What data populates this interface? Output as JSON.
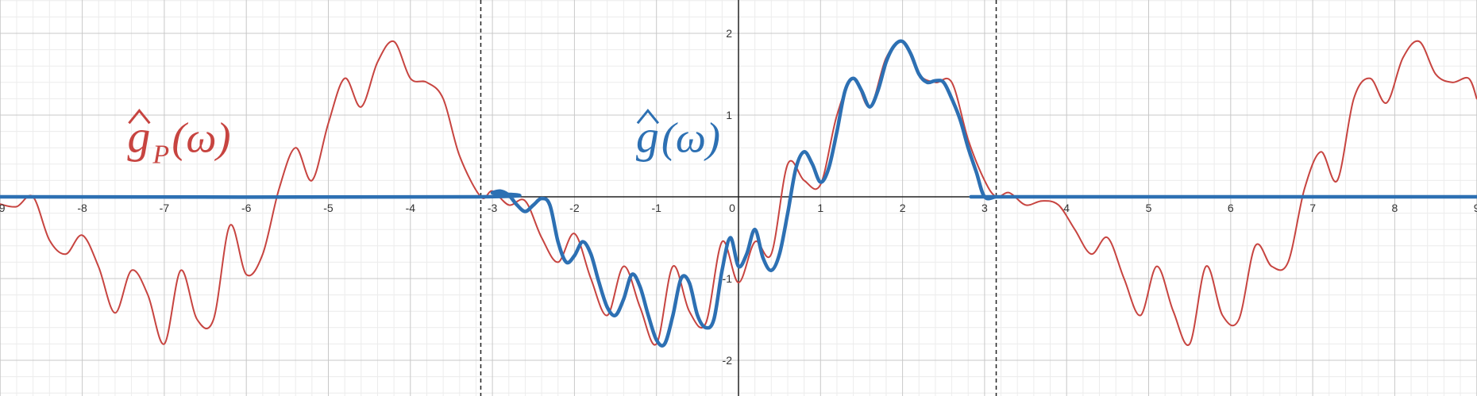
{
  "chart_data": {
    "type": "line",
    "grid": true,
    "xlim": [
      -9,
      9
    ],
    "ylim": [
      -2.45,
      2.45
    ],
    "x_ticks": [
      -9,
      -8,
      -7,
      -6,
      -5,
      -4,
      -3,
      -2,
      -1,
      0,
      1,
      2,
      3,
      4,
      5,
      6,
      7,
      8,
      9
    ],
    "x_tick_labels": [
      "-9",
      "-8",
      "-7",
      "-6",
      "-5",
      "-4",
      "-3",
      "-2",
      "-1",
      "0",
      "1",
      "2",
      "3",
      "4",
      "5",
      "6",
      "7",
      "8",
      "9"
    ],
    "y_ticks": [
      -2,
      -1,
      1,
      2
    ],
    "y_tick_labels": [
      "-2",
      "-1",
      "1",
      "2"
    ],
    "vertical_markers": [
      -3.14159,
      3.14159
    ],
    "annotations": [
      {
        "text_base": "g",
        "text_sub": "P",
        "text_arg": "(ω)",
        "hat": true,
        "color": "#c74440",
        "x": -7.45,
        "y": 0.55
      },
      {
        "text_base": "g",
        "text_sub": "",
        "text_arg": "(ω)",
        "hat": true,
        "color": "#2d70b3",
        "x": -1.25,
        "y": 0.55
      }
    ],
    "series": [
      {
        "color": "#c74440",
        "style": "thin",
        "x": [
          -9.0,
          -8.8,
          -8.6,
          -8.4,
          -8.2,
          -8.0,
          -7.8,
          -7.6,
          -7.4,
          -7.2,
          -7.0,
          -6.8,
          -6.6,
          -6.4,
          -6.2,
          -6.0,
          -5.8,
          -5.6,
          -5.4,
          -5.2,
          -5.0,
          -4.8,
          -4.6,
          -4.4,
          -4.2,
          -4.0,
          -3.8,
          -3.6,
          -3.4,
          -3.14159,
          -3.0,
          -2.8,
          -2.6,
          -2.4,
          -2.2,
          -2.0,
          -1.8,
          -1.6,
          -1.4,
          -1.2,
          -1.0,
          -0.8,
          -0.6,
          -0.4,
          -0.2,
          0.0,
          0.2,
          0.4,
          0.6,
          0.8,
          1.0,
          1.2,
          1.4,
          1.6,
          1.8,
          2.0,
          2.2,
          2.4,
          2.6,
          2.8,
          3.0,
          3.14159,
          3.3,
          3.5,
          3.7,
          3.9,
          4.1,
          4.3,
          4.5,
          4.7,
          4.9,
          5.1,
          5.3,
          5.5,
          5.7,
          5.9,
          6.1,
          6.3,
          6.5,
          6.7,
          6.9,
          7.1,
          7.3,
          7.5,
          7.7,
          7.9,
          8.1,
          8.3,
          8.5,
          8.7,
          8.9,
          9.0
        ],
        "y": [
          -0.09,
          -0.12,
          0.0,
          -0.53,
          -0.7,
          -0.47,
          -0.86,
          -1.42,
          -0.9,
          -1.2,
          -1.8,
          -0.9,
          -1.5,
          -1.5,
          -0.35,
          -0.95,
          -0.7,
          0.1,
          0.6,
          0.2,
          0.9,
          1.45,
          1.1,
          1.65,
          1.9,
          1.45,
          1.4,
          1.2,
          0.5,
          0.0,
          0.07,
          -0.1,
          -0.05,
          -0.5,
          -0.8,
          -0.45,
          -1.0,
          -1.45,
          -0.85,
          -1.35,
          -1.8,
          -0.85,
          -1.4,
          -1.55,
          -0.55,
          -1.05,
          -0.55,
          -0.7,
          0.4,
          0.2,
          0.15,
          1.0,
          1.45,
          1.1,
          1.7,
          1.9,
          1.5,
          1.4,
          1.4,
          0.7,
          0.2,
          0.0,
          0.05,
          -0.1,
          -0.05,
          -0.1,
          -0.4,
          -0.7,
          -0.5,
          -1.0,
          -1.45,
          -0.85,
          -1.4,
          -1.8,
          -0.85,
          -1.45,
          -1.5,
          -0.6,
          -0.85,
          -0.8,
          0.1,
          0.55,
          0.2,
          1.2,
          1.45,
          1.15,
          1.7,
          1.9,
          1.5,
          1.4,
          1.45,
          1.2
        ]
      },
      {
        "color": "#2d70b3",
        "style": "thick",
        "x": [
          -9.0,
          -3.14159,
          -3.0,
          -2.9,
          -2.8,
          -2.7,
          -2.6,
          -2.5,
          -2.4,
          -2.3,
          -2.2,
          -2.1,
          -2.0,
          -1.9,
          -1.8,
          -1.7,
          -1.6,
          -1.5,
          -1.4,
          -1.3,
          -1.2,
          -1.1,
          -1.0,
          -0.9,
          -0.8,
          -0.7,
          -0.6,
          -0.5,
          -0.4,
          -0.3,
          -0.2,
          -0.1,
          0.0,
          0.1,
          0.2,
          0.3,
          0.4,
          0.5,
          0.6,
          0.7,
          0.8,
          0.9,
          1.0,
          1.1,
          1.2,
          1.3,
          1.4,
          1.5,
          1.6,
          1.7,
          1.8,
          1.9,
          2.0,
          2.1,
          2.2,
          2.3,
          2.4,
          2.5,
          2.6,
          2.7,
          2.8,
          2.9,
          3.0,
          3.14159,
          3.3,
          9.0
        ],
        "y": [
          0.0,
          0.0,
          0.05,
          0.07,
          0.02,
          -0.1,
          -0.18,
          -0.1,
          -0.02,
          -0.1,
          -0.55,
          -0.8,
          -0.72,
          -0.55,
          -0.7,
          -1.05,
          -1.35,
          -1.45,
          -1.25,
          -0.95,
          -1.1,
          -1.45,
          -1.75,
          -1.8,
          -1.45,
          -1.0,
          -1.05,
          -1.45,
          -1.6,
          -1.5,
          -0.9,
          -0.5,
          -0.85,
          -0.7,
          -0.4,
          -0.75,
          -0.9,
          -0.7,
          -0.2,
          0.35,
          0.55,
          0.4,
          0.18,
          0.35,
          0.8,
          1.3,
          1.45,
          1.3,
          1.1,
          1.3,
          1.65,
          1.85,
          1.9,
          1.75,
          1.5,
          1.4,
          1.42,
          1.4,
          1.2,
          0.95,
          0.6,
          0.3,
          0.0,
          0.0,
          0.0,
          0.0
        ]
      }
    ]
  }
}
